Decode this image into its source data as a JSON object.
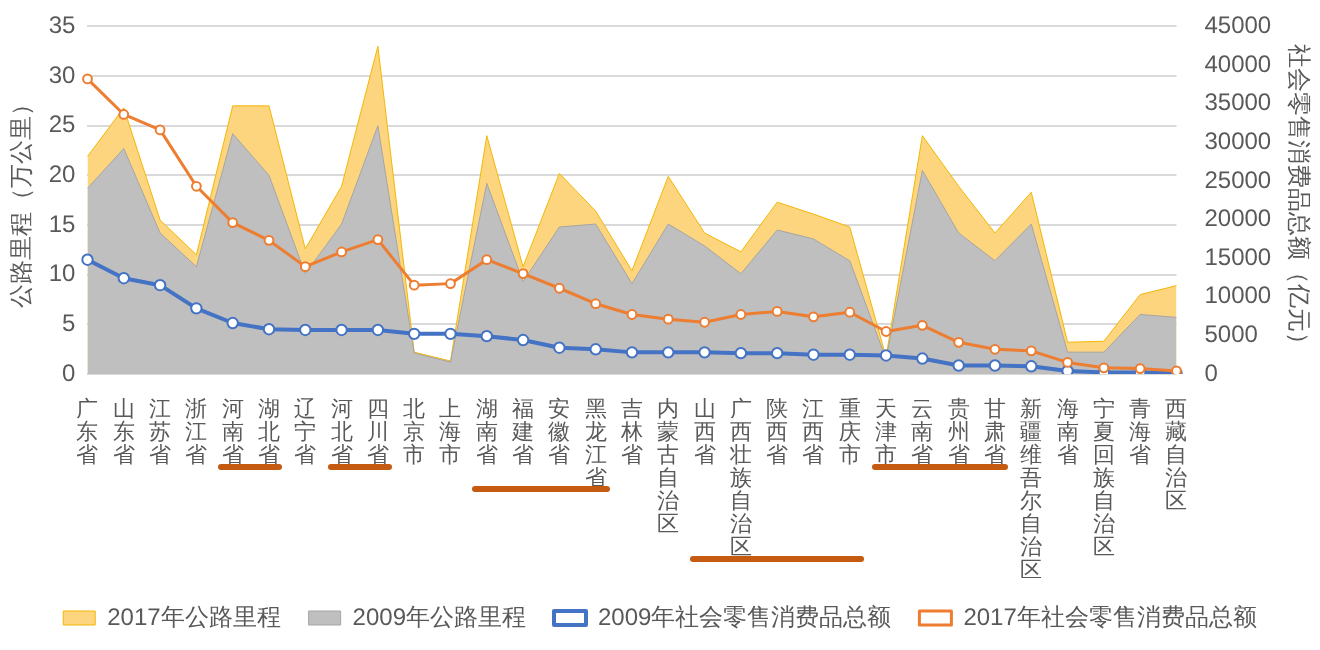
{
  "chart_data": {
    "type": "area",
    "categories": [
      "广东省",
      "山东省",
      "江苏省",
      "浙江省",
      "河南省",
      "湖北省",
      "辽宁省",
      "河北省",
      "四川省",
      "北京市",
      "上海市",
      "湖南省",
      "福建省",
      "安徽省",
      "黑龙江省",
      "吉林省",
      "内蒙古自治区",
      "山西省",
      "广西壮族自治区",
      "陕西省",
      "江西省",
      "重庆市",
      "天津市",
      "云南省",
      "贵州省",
      "甘肃省",
      "新疆维吾尔自治区",
      "海南省",
      "宁夏回族自治区",
      "青海省",
      "西藏自治区"
    ],
    "series": [
      {
        "name": "2017年公路里程",
        "color": "#fdd57e",
        "marker": "none",
        "values": [
          21.9,
          26.8,
          15.5,
          12.0,
          27.0,
          27.0,
          12.6,
          18.9,
          33.0,
          2.2,
          1.3,
          24.0,
          10.8,
          20.2,
          16.4,
          10.4,
          19.9,
          14.2,
          12.3,
          17.3,
          16.1,
          14.8,
          1.7,
          24.0,
          18.9,
          14.2,
          18.3,
          3.2,
          3.3,
          8.0,
          8.9
        ]
      },
      {
        "name": "2009年公路里程",
        "color": "#bfbfbf",
        "marker": "none",
        "values": [
          18.7,
          22.7,
          14.2,
          10.8,
          24.2,
          20.0,
          10.1,
          15.1,
          25.0,
          2.1,
          1.2,
          19.2,
          9.3,
          14.8,
          15.1,
          9.1,
          15.1,
          12.9,
          10.1,
          14.5,
          13.6,
          11.4,
          1.5,
          20.5,
          14.2,
          11.4,
          15.1,
          2.2,
          2.2,
          6.0,
          5.7
        ]
      },
      {
        "name": "2009年社会零售消费品总额",
        "type": "line",
        "axis": "y2",
        "color": "#4472c4",
        "marker": "circle",
        "values": [
          14800,
          12400,
          11500,
          8500,
          6600,
          5800,
          5700,
          5700,
          5700,
          5200,
          5200,
          4900,
          4400,
          3400,
          3200,
          2800,
          2800,
          2800,
          2700,
          2700,
          2500,
          2500,
          2400,
          2000,
          1100,
          1100,
          1000,
          400,
          200,
          200,
          100
        ]
      },
      {
        "name": "2017年社会零售消费品总额",
        "type": "line",
        "axis": "y2",
        "color": "#ed7d31",
        "marker": "circle",
        "values": [
          38200,
          33600,
          31600,
          24300,
          19600,
          17300,
          13900,
          15800,
          17400,
          11500,
          11700,
          14800,
          13000,
          11100,
          9100,
          7700,
          7100,
          6700,
          7700,
          8100,
          7400,
          8000,
          5500,
          6300,
          4100,
          3200,
          3000,
          1500,
          800,
          700,
          400
        ]
      }
    ],
    "ylabel": "公路里程（万公里）",
    "y2label": "社会零售消费品总额（亿元）",
    "ylim": [
      0,
      35
    ],
    "yticks": [
      0,
      5,
      10,
      15,
      20,
      25,
      30,
      35
    ],
    "y2lim": [
      0,
      45000
    ],
    "y2ticks": [
      0,
      5000,
      10000,
      15000,
      20000,
      25000,
      30000,
      35000,
      40000,
      45000
    ],
    "grid": "y",
    "legend": "bottom"
  }
}
